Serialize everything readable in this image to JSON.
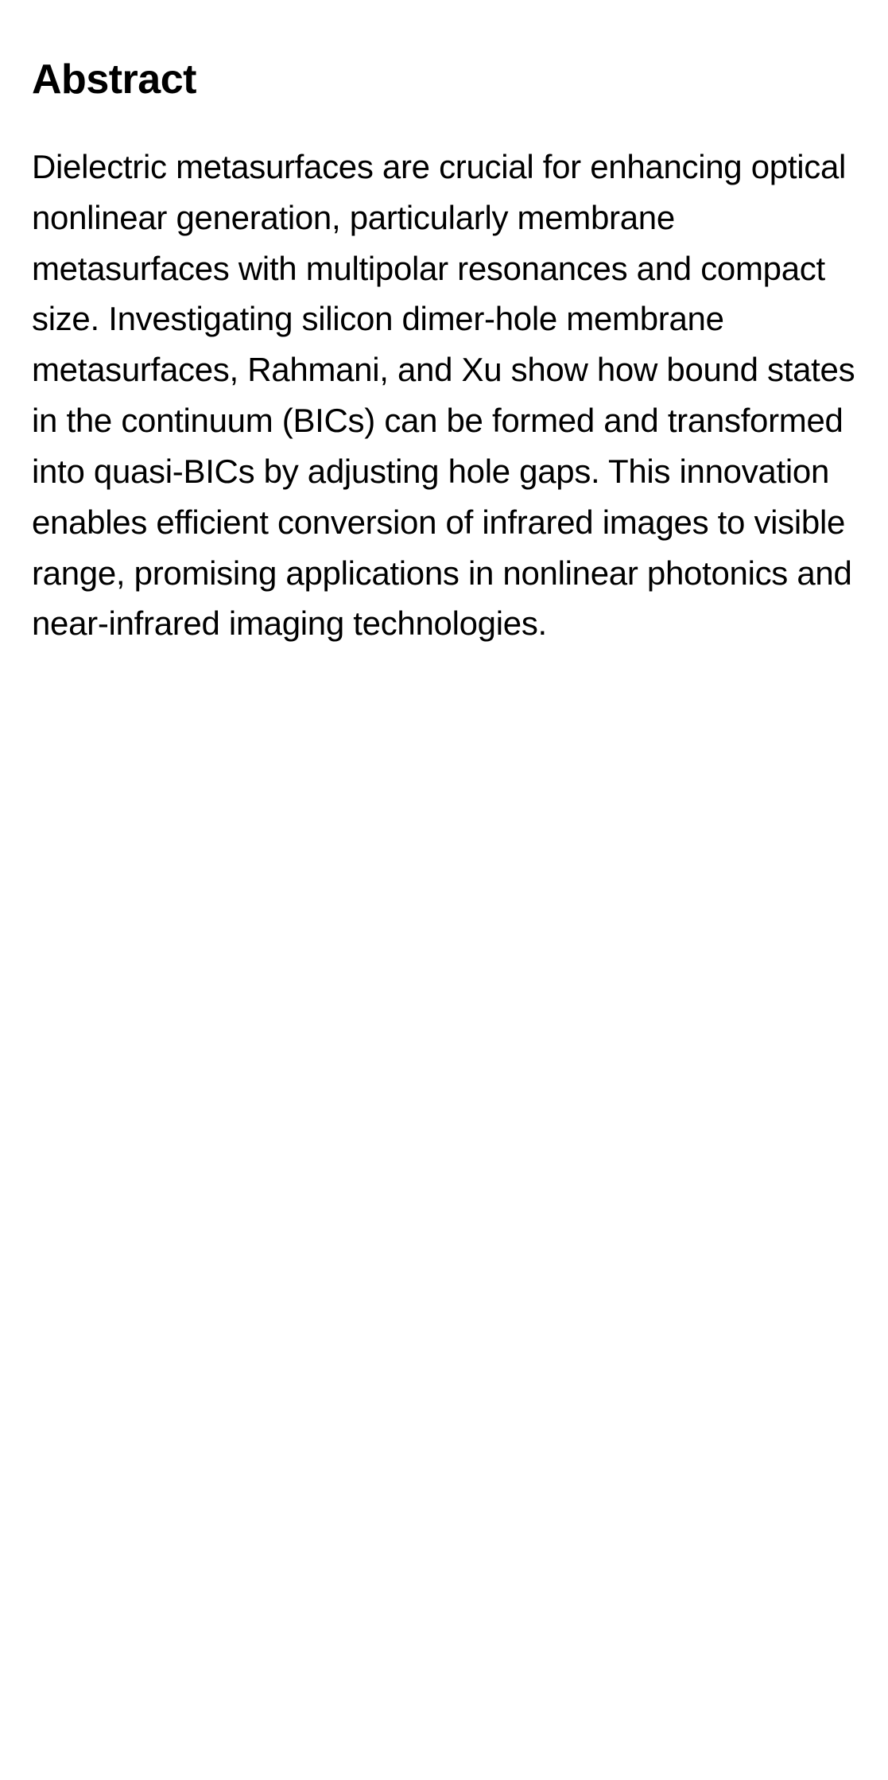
{
  "abstract": {
    "heading": "Abstract",
    "body": "Dielectric metasurfaces are crucial for enhancing optical nonlinear generation, particularly membrane metasurfaces with multipolar resonances and compact size. Investigating silicon dimer-hole membrane metasurfaces, Rahmani, and Xu show how bound states in the continuum (BICs) can be formed and transformed into quasi-BICs by adjusting hole gaps. This innovation enables efficient conversion of infrared images to visible range, promising applications in nonlinear photonics and near-infrared imaging technologies."
  },
  "colors": {
    "text": "#000000",
    "background": "#ffffff"
  },
  "typography": {
    "heading_fontsize": 52,
    "heading_weight": 700,
    "body_fontsize": 42,
    "body_weight": 400,
    "body_lineheight": 1.52
  }
}
